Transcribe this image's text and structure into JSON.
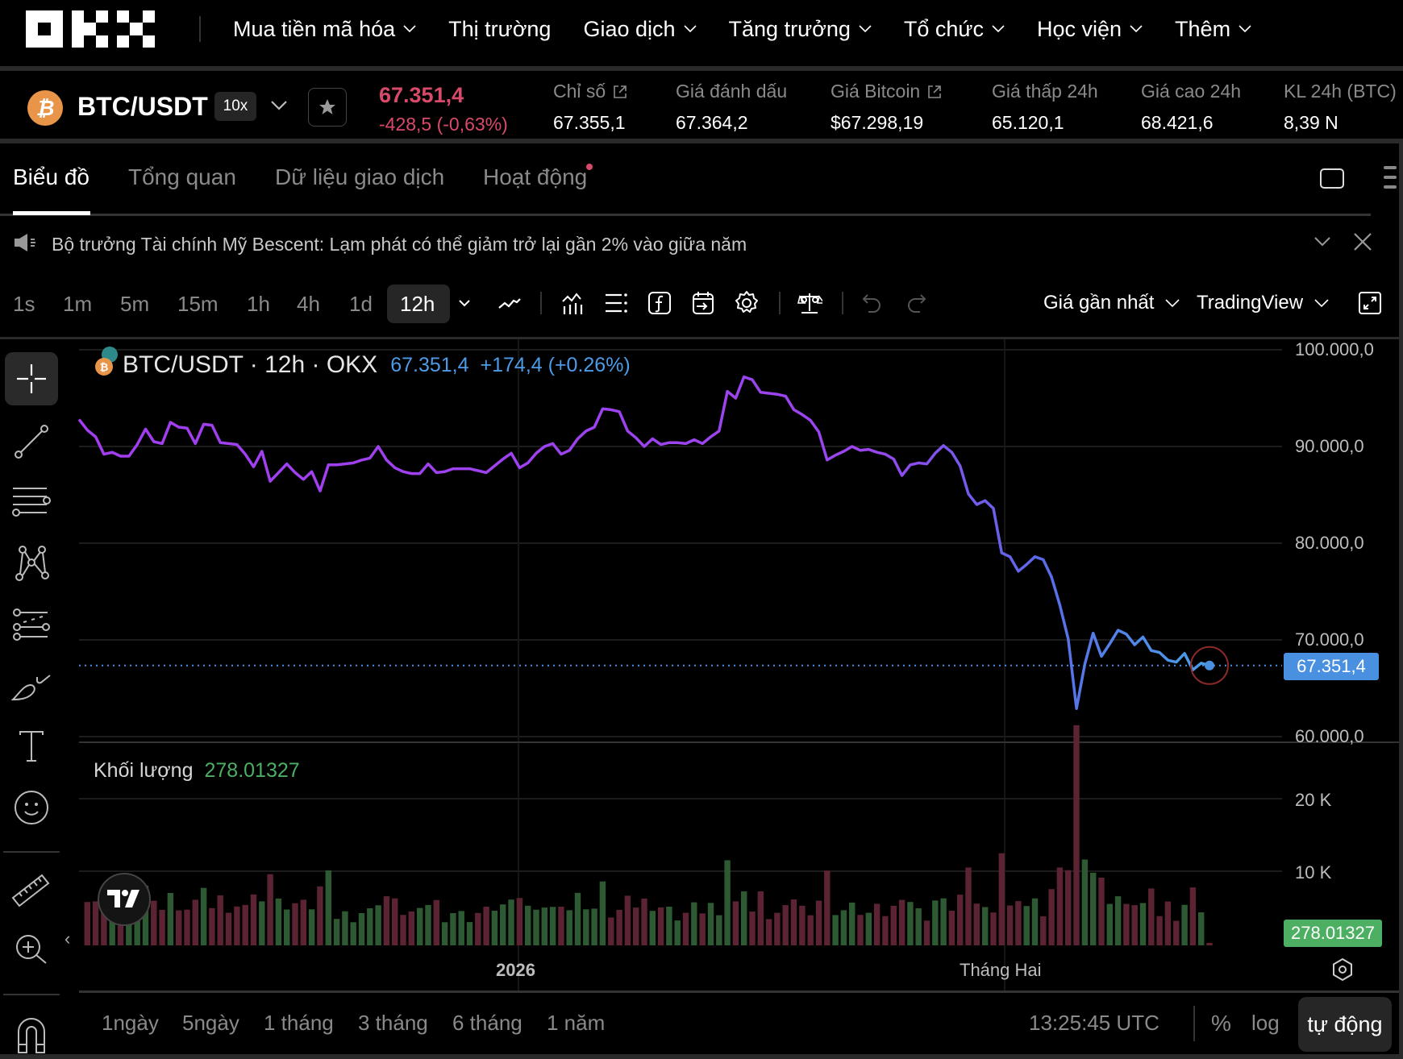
{
  "topnav": {
    "brand": "OKX",
    "items": [
      {
        "label": "Mua tiền mã hóa",
        "has_dropdown": true
      },
      {
        "label": "Thị trường",
        "has_dropdown": false
      },
      {
        "label": "Giao dịch",
        "has_dropdown": true
      },
      {
        "label": "Tăng trưởng",
        "has_dropdown": true
      },
      {
        "label": "Tổ chức",
        "has_dropdown": true
      },
      {
        "label": "Học viện",
        "has_dropdown": true
      },
      {
        "label": "Thêm",
        "has_dropdown": true
      }
    ]
  },
  "ticker": {
    "coin_symbol": "₿",
    "pair": "BTC/USDT",
    "leverage": "10x",
    "last_price": "67.351,4",
    "change": "-428,5 (-0,63%)",
    "stats": [
      {
        "label": "Chỉ số",
        "value": "67.355,1",
        "external": true
      },
      {
        "label": "Giá đánh dấu",
        "value": "67.364,2",
        "external": false
      },
      {
        "label": "Giá Bitcoin",
        "value": "$67.298,19",
        "external": true
      },
      {
        "label": "Giá thấp 24h",
        "value": "65.120,1",
        "external": false
      },
      {
        "label": "Giá cao 24h",
        "value": "68.421,6",
        "external": false
      },
      {
        "label": "KL 24h (BTC)",
        "value": "8,39 N",
        "external": false
      }
    ]
  },
  "tabs": [
    {
      "label": "Biểu đồ",
      "active": true
    },
    {
      "label": "Tổng quan",
      "active": false
    },
    {
      "label": "Dữ liệu giao dịch",
      "active": false
    },
    {
      "label": "Hoạt động",
      "active": false,
      "dot": true
    }
  ],
  "announcement": {
    "text": "Bộ trưởng Tài chính Mỹ Bescent: Lạm phát có thể giảm trở lại gần 2% vào giữa năm"
  },
  "toolbar": {
    "intervals": [
      "1s",
      "1m",
      "5m",
      "15m",
      "1h",
      "4h",
      "1d",
      "12h"
    ],
    "active_interval": "12h",
    "price_type": "Giá gần nhất",
    "chart_engine": "TradingView"
  },
  "legend": {
    "title": "BTC/USDT · 12h · OKX",
    "price": "67.351,4",
    "change": "+174,4 (+0.26%)"
  },
  "volume_legend": {
    "label": "Khối lượng",
    "value": "278.01327"
  },
  "price_axis": {
    "labels": [
      "100.000,0",
      "90.000,0",
      "80.000,0",
      "70.000,0",
      "60.000,0"
    ],
    "current_tag": "67.351,4"
  },
  "volume_axis": {
    "labels": [
      "20 K",
      "10 K"
    ],
    "current_tag": "278.01327"
  },
  "time_axis": {
    "labels": [
      {
        "text": "2026",
        "bold": true
      },
      {
        "text": "Tháng Hai",
        "bold": false
      }
    ]
  },
  "bottom_bar": {
    "ranges": [
      "1ngày",
      "5ngày",
      "1 tháng",
      "3 tháng",
      "6 tháng",
      "1 năm"
    ],
    "clock": "13:25:45 UTC",
    "percent": "%",
    "log": "log",
    "auto": "tự động"
  },
  "colors": {
    "up": "#2d5a32",
    "down": "#5c2333",
    "line_start": "#a23ef0",
    "line_end": "#4aa0e8",
    "accent_blue": "#4a90e0",
    "accent_green": "#4caf62",
    "negative": "#d94a6a"
  },
  "chart_data": {
    "type": "line",
    "title": "BTC/USDT · 12h · OKX",
    "xlabel": "",
    "ylabel": "",
    "ylim": [
      60000,
      100000
    ],
    "x_ticks": [
      "2026",
      "Tháng Hai"
    ],
    "y_ticks": [
      100000,
      90000,
      80000,
      70000,
      60000
    ],
    "series": [
      {
        "name": "BTC/USDT close",
        "values": [
          92800,
          91700,
          91000,
          89200,
          89400,
          89000,
          89000,
          90200,
          91800,
          90500,
          90300,
          92500,
          92000,
          91900,
          90300,
          92300,
          92200,
          90400,
          90300,
          90200,
          89200,
          87900,
          89500,
          86400,
          87300,
          88200,
          87300,
          86600,
          87400,
          85400,
          88100,
          88100,
          88200,
          88300,
          88600,
          88800,
          90000,
          88600,
          87800,
          87400,
          87200,
          87200,
          88200,
          87300,
          87400,
          87700,
          87700,
          87700,
          87500,
          87300,
          88000,
          88700,
          89300,
          87800,
          88300,
          89300,
          90000,
          90300,
          89200,
          89600,
          90800,
          91600,
          92000,
          93900,
          93800,
          93600,
          91600,
          90900,
          90000,
          90800,
          90200,
          90400,
          90400,
          90300,
          90700,
          90300,
          91000,
          91600,
          95700,
          95000,
          97200,
          96900,
          95600,
          95500,
          95400,
          95200,
          93800,
          93300,
          92700,
          91500,
          88600,
          89100,
          89500,
          90000,
          89600,
          89700,
          89400,
          89200,
          88700,
          87000,
          88100,
          88300,
          88200,
          89300,
          90100,
          89400,
          88000,
          85100,
          84000,
          84400,
          83600,
          79000,
          78600,
          77100,
          77800,
          78600,
          78300,
          76500,
          73600,
          70100,
          62900,
          67500,
          70700,
          68300,
          69600,
          71000,
          70600,
          69500,
          70300,
          68900,
          68700,
          67900,
          67700,
          68600,
          66900,
          67600,
          67351
        ],
        "current_value": 67351.4
      },
      {
        "name": "Khối lượng",
        "type": "bar",
        "ylim": [
          0,
          25000
        ],
        "last_value": 278.01327,
        "peak_value": 25300
      }
    ],
    "legend_position": "top-left",
    "grid": true
  }
}
